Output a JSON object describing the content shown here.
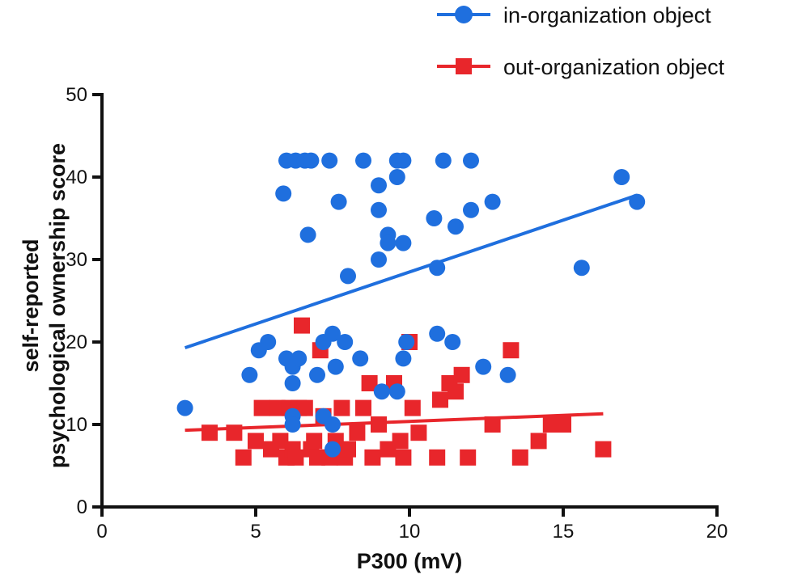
{
  "chart_data": {
    "type": "scatter",
    "xlabel": "P300 (mV)",
    "ylabel_lines": [
      "self-reported",
      "psychological ownership score"
    ],
    "xlim": [
      0,
      20
    ],
    "ylim": [
      0,
      50
    ],
    "xticks": [
      0,
      5,
      10,
      15,
      20
    ],
    "yticks": [
      0,
      10,
      20,
      30,
      40,
      50
    ],
    "legend_position": "top-right",
    "series": [
      {
        "name": "in-organization object",
        "marker": "circle",
        "color": "#1f6fde",
        "points": [
          [
            6.0,
            42
          ],
          [
            6.3,
            42
          ],
          [
            6.6,
            42
          ],
          [
            6.8,
            42
          ],
          [
            7.4,
            42
          ],
          [
            8.5,
            42
          ],
          [
            9.6,
            42
          ],
          [
            9.8,
            42
          ],
          [
            11.1,
            42
          ],
          [
            12.0,
            42
          ],
          [
            5.9,
            38
          ],
          [
            7.7,
            37
          ],
          [
            9.6,
            40
          ],
          [
            9.0,
            39
          ],
          [
            9.0,
            36
          ],
          [
            10.8,
            35
          ],
          [
            11.5,
            34
          ],
          [
            12.0,
            36
          ],
          [
            12.7,
            37
          ],
          [
            6.7,
            33
          ],
          [
            9.3,
            33
          ],
          [
            9.3,
            32
          ],
          [
            9.8,
            32
          ],
          [
            9.0,
            30
          ],
          [
            8.0,
            28
          ],
          [
            10.9,
            29
          ],
          [
            15.6,
            29
          ],
          [
            16.9,
            40
          ],
          [
            17.4,
            37
          ],
          [
            5.4,
            20
          ],
          [
            5.1,
            19
          ],
          [
            6.0,
            18
          ],
          [
            6.2,
            17
          ],
          [
            6.4,
            18
          ],
          [
            7.2,
            20
          ],
          [
            7.5,
            21
          ],
          [
            7.9,
            20
          ],
          [
            8.4,
            18
          ],
          [
            4.8,
            16
          ],
          [
            6.2,
            15
          ],
          [
            7.0,
            16
          ],
          [
            7.6,
            17
          ],
          [
            9.6,
            14
          ],
          [
            9.1,
            14
          ],
          [
            9.8,
            18
          ],
          [
            9.9,
            20
          ],
          [
            10.9,
            21
          ],
          [
            11.4,
            20
          ],
          [
            12.4,
            17
          ],
          [
            13.2,
            16
          ],
          [
            6.2,
            11
          ],
          [
            6.2,
            10
          ],
          [
            7.2,
            11
          ],
          [
            7.5,
            10
          ],
          [
            7.5,
            7
          ],
          [
            2.7,
            12
          ]
        ],
        "fit": [
          [
            2.7,
            19.3
          ],
          [
            17.4,
            37.8
          ]
        ]
      },
      {
        "name": "out-organization object",
        "marker": "square",
        "color": "#e8262b",
        "points": [
          [
            3.5,
            9
          ],
          [
            4.3,
            9
          ],
          [
            4.6,
            6
          ],
          [
            5.0,
            8
          ],
          [
            5.2,
            12
          ],
          [
            5.5,
            7
          ],
          [
            5.7,
            12
          ],
          [
            5.8,
            8
          ],
          [
            6.0,
            6
          ],
          [
            6.1,
            12
          ],
          [
            6.2,
            7
          ],
          [
            6.3,
            6
          ],
          [
            6.4,
            12
          ],
          [
            6.5,
            22
          ],
          [
            6.6,
            12
          ],
          [
            6.8,
            7
          ],
          [
            6.9,
            8
          ],
          [
            7.0,
            6
          ],
          [
            7.1,
            19
          ],
          [
            7.2,
            11
          ],
          [
            7.4,
            6
          ],
          [
            7.6,
            8
          ],
          [
            7.8,
            12
          ],
          [
            7.9,
            6
          ],
          [
            8.0,
            7
          ],
          [
            8.3,
            9
          ],
          [
            8.5,
            12
          ],
          [
            8.7,
            15
          ],
          [
            8.8,
            6
          ],
          [
            9.0,
            10
          ],
          [
            9.3,
            7
          ],
          [
            9.5,
            15
          ],
          [
            9.7,
            8
          ],
          [
            9.8,
            6
          ],
          [
            10.0,
            20
          ],
          [
            10.1,
            12
          ],
          [
            10.3,
            9
          ],
          [
            10.9,
            6
          ],
          [
            11.0,
            13
          ],
          [
            11.3,
            15
          ],
          [
            11.5,
            14
          ],
          [
            11.7,
            16
          ],
          [
            11.9,
            6
          ],
          [
            12.7,
            10
          ],
          [
            13.3,
            19
          ],
          [
            13.6,
            6
          ],
          [
            14.2,
            8
          ],
          [
            14.6,
            10
          ],
          [
            15.0,
            10
          ],
          [
            16.3,
            7
          ]
        ],
        "fit": [
          [
            2.7,
            9.3
          ],
          [
            16.3,
            11.3
          ]
        ]
      }
    ]
  }
}
